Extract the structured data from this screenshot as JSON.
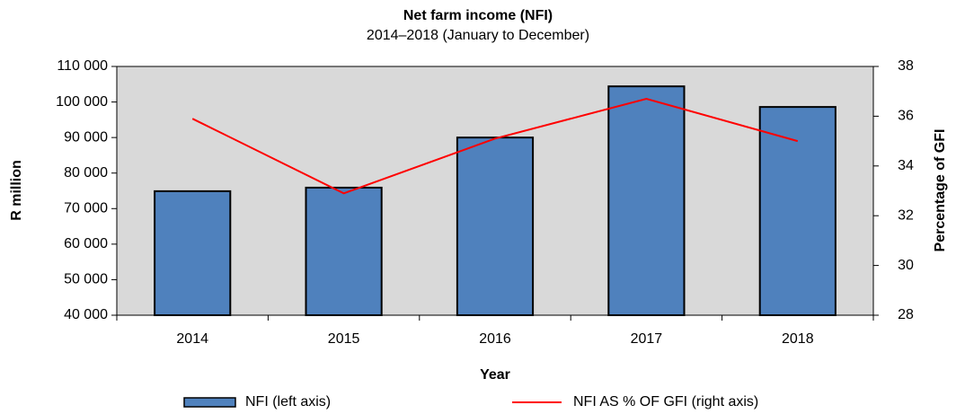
{
  "chart_data": {
    "type": "combo",
    "title": "Net farm income (NFI)",
    "subtitle": "2014–2018 (January to December)",
    "x_label": "Year",
    "y_label": "R million",
    "y2_label": "Percentage of GFI",
    "categories": [
      "2014",
      "2015",
      "2016",
      "2017",
      "2018"
    ],
    "series": [
      {
        "name": "NFI (left axis)",
        "type": "bar",
        "color": "#4f81bd",
        "values": [
          74900,
          75900,
          90000,
          104400,
          98600
        ]
      },
      {
        "name": "NFI AS % OF GFI (right axis)",
        "type": "line",
        "axis": "y2",
        "color": "#ff0000",
        "values": [
          35.9,
          32.9,
          35.1,
          36.7,
          35.0
        ]
      }
    ],
    "ylim": [
      40000,
      110000
    ],
    "yticks": [
      {
        "value": 40000,
        "label": "40 000"
      },
      {
        "value": 50000,
        "label": "50 000"
      },
      {
        "value": 60000,
        "label": "60 000"
      },
      {
        "value": 70000,
        "label": "70 000"
      },
      {
        "value": 80000,
        "label": "80 000"
      },
      {
        "value": 90000,
        "label": "90 000"
      },
      {
        "value": 100000,
        "label": "100 000"
      },
      {
        "value": 110000,
        "label": "110 000"
      }
    ],
    "y2lim": [
      28,
      38
    ],
    "y2ticks": [
      28,
      30,
      32,
      34,
      36,
      38
    ],
    "legend": "bottom",
    "plot_background": "#d9d9d9"
  }
}
